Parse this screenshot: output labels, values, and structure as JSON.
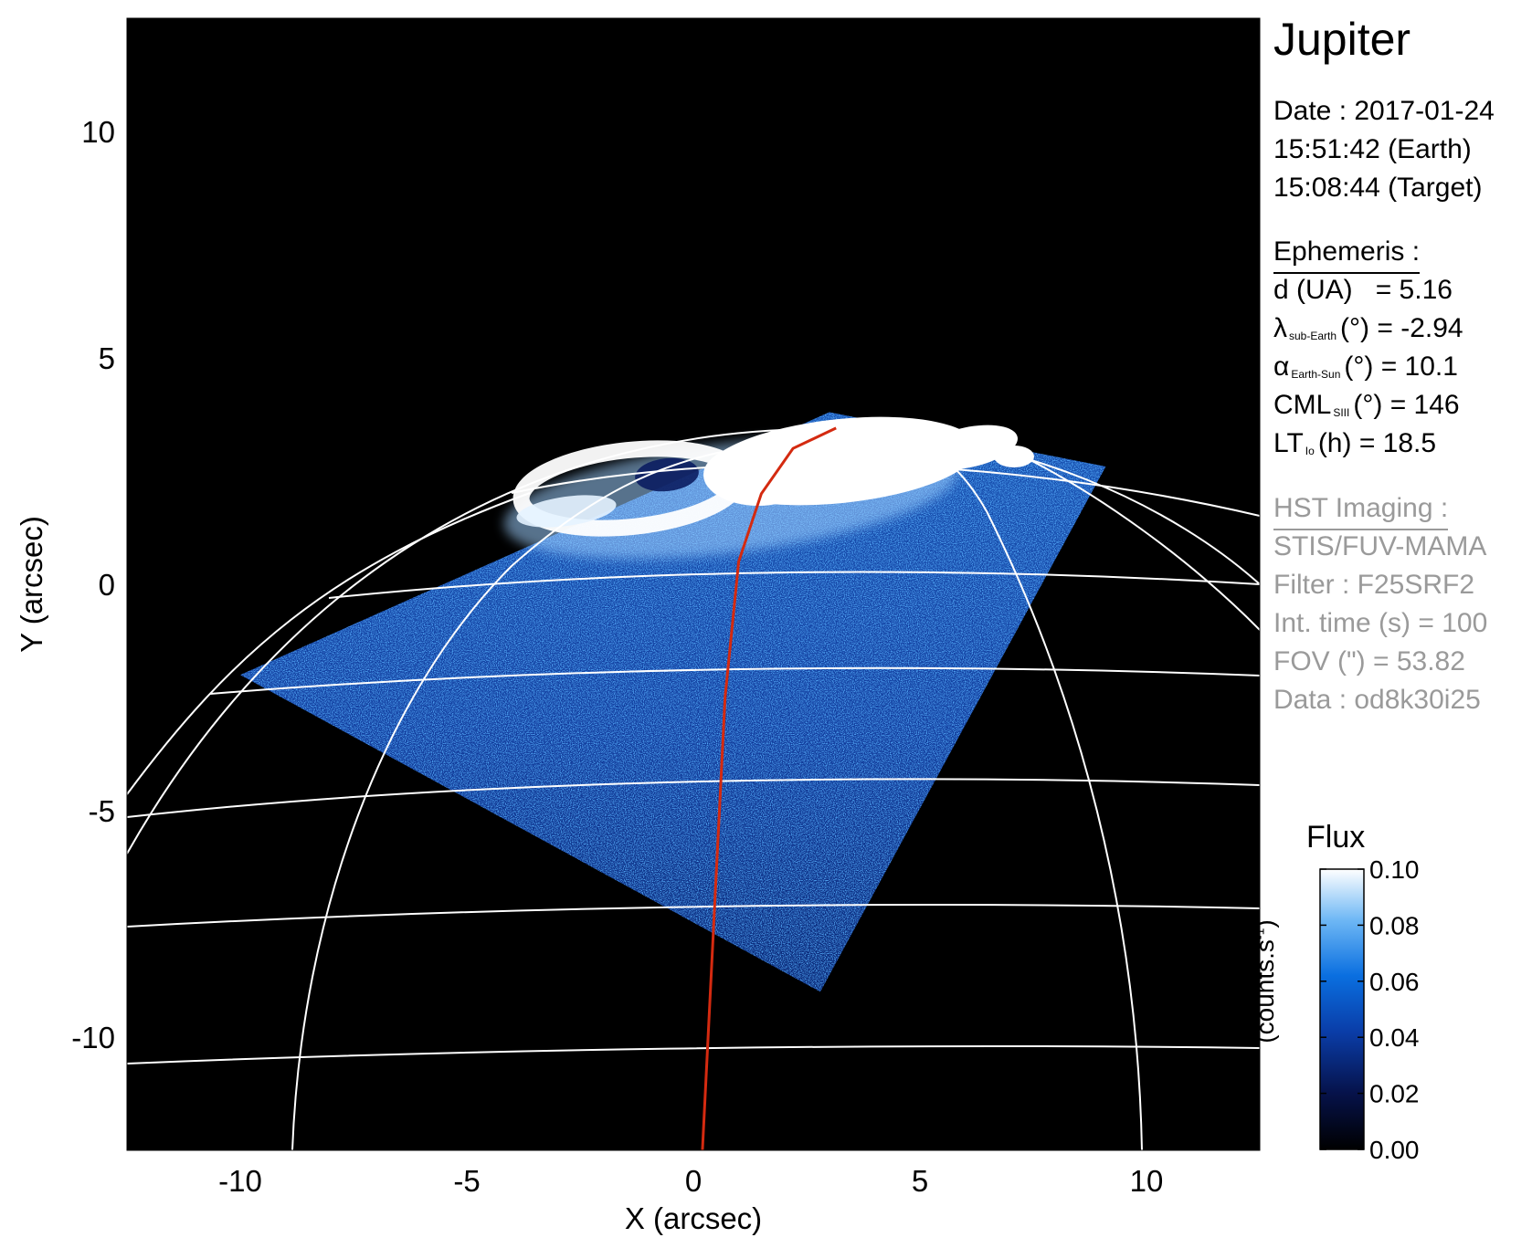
{
  "target_name": "Jupiter",
  "date_lines": [
    "Date : 2017-01-24",
    "15:51:42 (Earth)",
    "15:08:44 (Target)"
  ],
  "ephemeris": {
    "heading": "Ephemeris :",
    "distance": {
      "label": "d (UA)",
      "value": "= 5.16"
    },
    "sub_earth": {
      "symbol": "λ",
      "sub": "sub-Earth",
      "unit": "(°)",
      "value": "= -2.94"
    },
    "phase": {
      "symbol": "α",
      "sub": "Earth-Sun",
      "unit": "(°)",
      "value": "= 10.1"
    },
    "cml": {
      "symbol": "CML",
      "sub": "SIII",
      "unit": "(°)",
      "value": "= 146"
    },
    "lt": {
      "symbol": "LT",
      "sub": "Io",
      "unit": "(h)",
      "value": "= 18.5"
    }
  },
  "hst": {
    "heading": "HST Imaging :",
    "lines": [
      "STIS/FUV-MAMA",
      "Filter : F25SRF2",
      "Int. time (s) = 100",
      "FOV (\") = 53.82",
      "Data : od8k30i25"
    ]
  },
  "colorbar": {
    "title": "Flux",
    "unit_main": "(counts.s",
    "unit_sup": "-1",
    "unit_close": ")",
    "ticks": [
      0.1,
      0.08,
      0.06,
      0.04,
      0.02,
      0.0
    ],
    "tick_labels": [
      "0.10",
      "0.08",
      "0.06",
      "0.04",
      "0.02",
      "0.00"
    ],
    "range": [
      0.0,
      0.1
    ],
    "colormap": [
      "#000000",
      "#06124a",
      "#0a3da8",
      "#0a6fe0",
      "#6fb8f5",
      "#ffffff"
    ]
  },
  "chart_data": {
    "type": "image",
    "xlabel": "X (arcsec)",
    "ylabel": "Y (arcsec)",
    "xlim": [
      -12.5,
      12.5
    ],
    "ylim": [
      -12.5,
      12.5
    ],
    "xticks": [
      -10,
      -5,
      0,
      5,
      10
    ],
    "xtick_labels": [
      "-10",
      "-5",
      "0",
      "5",
      "10"
    ],
    "yticks": [
      10,
      5,
      0,
      -5,
      -10
    ],
    "ytick_labels": [
      "10",
      "5",
      "0",
      "-5",
      "-10"
    ],
    "grid_color": "#ffffff",
    "footprint_color": "#d42a10",
    "background_color": "#000000",
    "footprint": [
      [
        0.2,
        -12.5
      ],
      [
        0.45,
        -7.5
      ],
      [
        0.7,
        -2.5
      ],
      [
        1.0,
        0.5
      ],
      [
        1.5,
        2.0
      ],
      [
        2.2,
        3.0
      ],
      [
        3.15,
        3.45
      ]
    ],
    "fov_corners": [
      [
        -10.0,
        -2.0
      ],
      [
        3.0,
        3.8
      ],
      [
        9.1,
        2.6
      ],
      [
        2.8,
        -9.0
      ]
    ]
  }
}
